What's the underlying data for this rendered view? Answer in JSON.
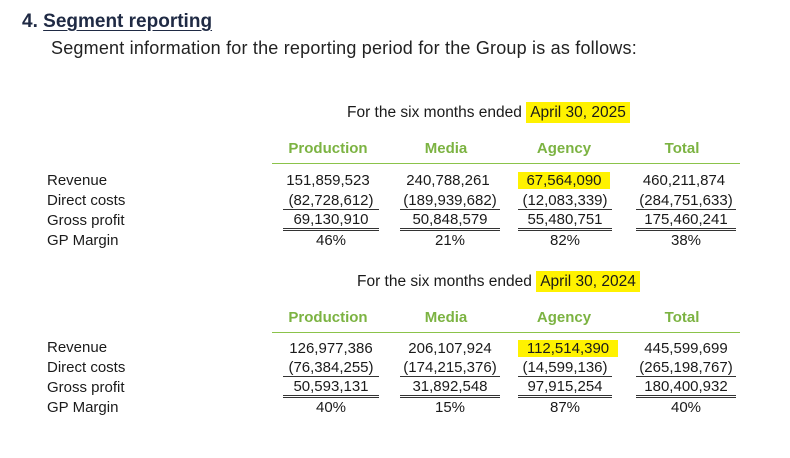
{
  "heading": {
    "number": "4.",
    "title": "Segment reporting"
  },
  "intro": "Segment  information for the reporting period for the Group is as follows:",
  "columns": [
    "Production",
    "Media",
    "Agency",
    "Total"
  ],
  "row_labels": [
    "Revenue",
    "Direct costs",
    "Gross profit",
    "GP Margin"
  ],
  "highlight_color": "#fff200",
  "header_color": "#7cb342",
  "sections": [
    {
      "period_prefix": "For the six months ended ",
      "period_date": "April  30, 2025",
      "rows": [
        [
          "151,859,523",
          "240,788,261",
          "67,564,090",
          "460,211,874"
        ],
        [
          "(82,728,612)",
          "(189,939,682)",
          "(12,083,339)",
          "(284,751,633)"
        ],
        [
          "69,130,910",
          "50,848,579",
          "55,480,751",
          "175,460,241"
        ],
        [
          "46%",
          "21%",
          "82%",
          "38%"
        ]
      ]
    },
    {
      "period_prefix": "For the six months ended ",
      "period_date": "April 30, 2024",
      "rows": [
        [
          "126,977,386",
          "206,107,924",
          "112,514,390",
          "445,599,699"
        ],
        [
          "(76,384,255)",
          "(174,215,376)",
          "(14,599,136)",
          "(265,198,767)"
        ],
        [
          "50,593,131",
          "31,892,548",
          "97,915,254",
          "180,400,932"
        ],
        [
          "40%",
          "15%",
          "87%",
          "40%"
        ]
      ]
    }
  ]
}
